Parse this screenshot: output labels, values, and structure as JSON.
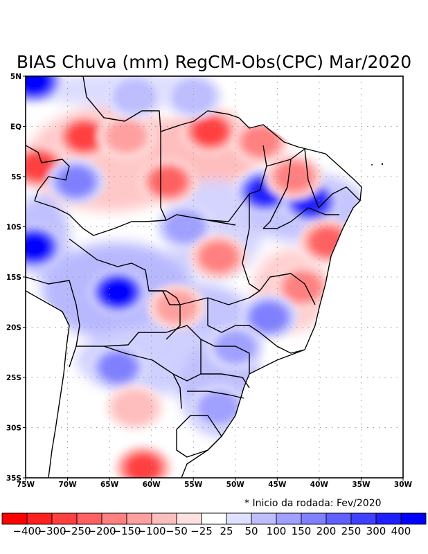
{
  "chart_data": {
    "type": "heatmap",
    "title": "BIAS Chuva (mm) RegCM-Obs(CPC) Mar/2020",
    "note": "* Inicio da rodada: Fev/2020",
    "xlabel": "",
    "ylabel": "",
    "xlim": [
      -75,
      -30
    ],
    "ylim": [
      -35,
      5
    ],
    "grid": true,
    "x_ticks": [
      {
        "value": -75,
        "label": "75W"
      },
      {
        "value": -70,
        "label": "70W"
      },
      {
        "value": -65,
        "label": "65W"
      },
      {
        "value": -60,
        "label": "60W"
      },
      {
        "value": -55,
        "label": "55W"
      },
      {
        "value": -50,
        "label": "50W"
      },
      {
        "value": -45,
        "label": "45W"
      },
      {
        "value": -40,
        "label": "40W"
      },
      {
        "value": -35,
        "label": "35W"
      },
      {
        "value": -30,
        "label": "30W"
      }
    ],
    "y_ticks": [
      {
        "value": 5,
        "label": "5N"
      },
      {
        "value": 0,
        "label": "EQ"
      },
      {
        "value": -5,
        "label": "5S"
      },
      {
        "value": -10,
        "label": "10S"
      },
      {
        "value": -15,
        "label": "15S"
      },
      {
        "value": -20,
        "label": "20S"
      },
      {
        "value": -25,
        "label": "25S"
      },
      {
        "value": -30,
        "label": "30S"
      },
      {
        "value": -35,
        "label": "35S"
      }
    ],
    "colorbar": {
      "position": "bottom",
      "colors": [
        "#ff0000",
        "#ff2020",
        "#ff4040",
        "#ff6060",
        "#ff8080",
        "#ffa0a0",
        "#ffbebe",
        "#ffe0e0",
        "#ffffff",
        "#e0e0ff",
        "#bebeff",
        "#a0a0ff",
        "#8080ff",
        "#6060ff",
        "#4040ff",
        "#2020ff",
        "#0000ff"
      ],
      "labels": [
        "-400",
        "-300",
        "-250",
        "-200",
        "-150",
        "-100",
        "-50",
        "-25",
        "25",
        "50",
        "100",
        "150",
        "200",
        "250",
        "300",
        "400"
      ]
    },
    "anomaly_centers": [
      {
        "lon": -74,
        "lat": 4.5,
        "value": 400
      },
      {
        "lon": -73.5,
        "lat": -4,
        "value": -250
      },
      {
        "lon": -68,
        "lat": -1,
        "value": -250
      },
      {
        "lon": -69,
        "lat": -5.5,
        "value": 150
      },
      {
        "lon": -58,
        "lat": -5.5,
        "value": -200
      },
      {
        "lon": -63,
        "lat": -1,
        "value": -100
      },
      {
        "lon": -53,
        "lat": -0.5,
        "value": -250
      },
      {
        "lon": -55,
        "lat": 3,
        "value": 50
      },
      {
        "lon": -62,
        "lat": 3,
        "value": 50
      },
      {
        "lon": -47,
        "lat": -1.5,
        "value": -150
      },
      {
        "lon": -46.5,
        "lat": -6.5,
        "value": 300
      },
      {
        "lon": -41,
        "lat": -7.5,
        "value": 300
      },
      {
        "lon": -43,
        "lat": -5,
        "value": -150
      },
      {
        "lon": -39,
        "lat": -11.5,
        "value": -200
      },
      {
        "lon": -74,
        "lat": -12,
        "value": 400
      },
      {
        "lon": -64,
        "lat": -16.5,
        "value": 400
      },
      {
        "lon": -56,
        "lat": -10,
        "value": 100
      },
      {
        "lon": -52,
        "lat": -13,
        "value": -150
      },
      {
        "lon": -57,
        "lat": -18,
        "value": -100
      },
      {
        "lon": -42,
        "lat": -16,
        "value": -150
      },
      {
        "lon": -46,
        "lat": -19,
        "value": 150
      },
      {
        "lon": -50,
        "lat": -22,
        "value": 100
      },
      {
        "lon": -52,
        "lat": -28,
        "value": 100
      },
      {
        "lon": -64,
        "lat": -24,
        "value": 150
      },
      {
        "lon": -61,
        "lat": -34,
        "value": -250
      },
      {
        "lon": -62,
        "lat": -28,
        "value": -50
      }
    ]
  }
}
